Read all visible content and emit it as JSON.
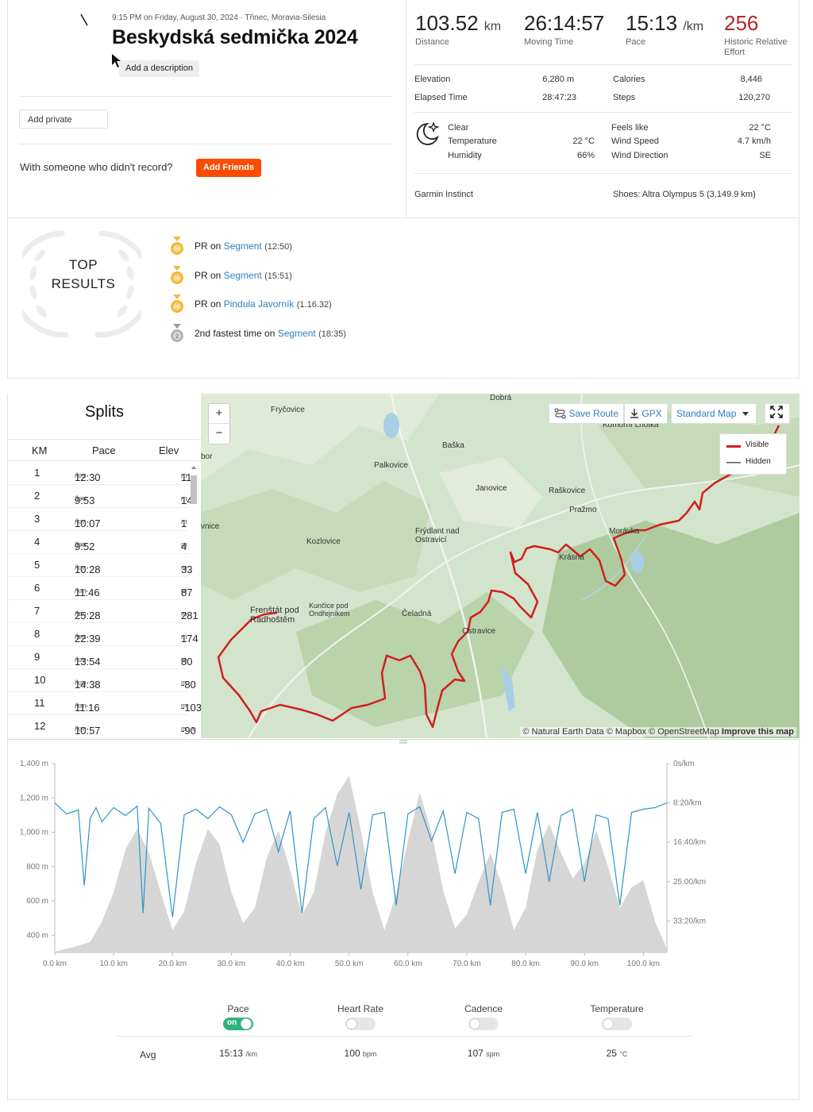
{
  "activity": {
    "meta": "9:15 PM on Friday, August 30, 2024 · Třinec, Moravia-Silesia",
    "title": "Beskydská sedmička 2024",
    "add_description": "Add a description",
    "add_private": "Add private",
    "with_someone": "With someone who didn't record?",
    "add_friends": "Add Friends"
  },
  "stats": {
    "distance": {
      "value": "103.52",
      "unit": "km",
      "label": "Distance"
    },
    "moving_time": {
      "value": "26:14:57",
      "label": "Moving Time"
    },
    "pace": {
      "value": "15:13",
      "unit": "/km",
      "label": "Pace"
    },
    "relative_effort": {
      "value": "256",
      "label": "Historic Relative Effort"
    }
  },
  "details": {
    "elevation_label": "Elevation",
    "elevation": "6,280 m",
    "calories_label": "Calories",
    "calories": "8,446",
    "elapsed_label": "Elapsed Time",
    "elapsed": "28:47:23",
    "steps_label": "Steps",
    "steps": "120,270"
  },
  "weather": {
    "condition": "Clear",
    "temperature_label": "Temperature",
    "temperature": "22 °C",
    "humidity_label": "Humidity",
    "humidity": "66%",
    "feels_like_label": "Feels like",
    "feels_like": "22 °C",
    "wind_speed_label": "Wind Speed",
    "wind_speed": "4.7 km/h",
    "wind_dir_label": "Wind Direction",
    "wind_dir": "SE",
    "icon": "moon-star-icon"
  },
  "gear": {
    "device": "Garmin Instinct",
    "shoes": "Shoes: Altra Olympus 5 (3,149.9 km)"
  },
  "top_results": {
    "title_line1": "TOP",
    "title_line2": "RESULTS",
    "items": [
      {
        "prefix": "PR on ",
        "segment": "Segment",
        "time": "(12:50)",
        "medal": "pr-gold"
      },
      {
        "prefix": "PR on ",
        "segment": "Segment",
        "time": "(15:51)",
        "medal": "pr-gold"
      },
      {
        "prefix": "PR on ",
        "segment": "Pindula Javorník",
        "time": "(1.16.32)",
        "medal": "pr-gold"
      },
      {
        "prefix": "2nd fastest time on ",
        "segment": "Segment",
        "time": "(18:35)",
        "medal": "silver-2"
      }
    ]
  },
  "splits": {
    "title": "Splits",
    "headers": [
      "KM",
      "Pace",
      "Elev"
    ],
    "pace_unit": "/km",
    "elev_unit": "m",
    "rows": [
      {
        "km": "1",
        "pace": "12:30",
        "elev": "11"
      },
      {
        "km": "2",
        "pace": "9:53",
        "elev": "14"
      },
      {
        "km": "3",
        "pace": "10:07",
        "elev": "1"
      },
      {
        "km": "4",
        "pace": "9:52",
        "elev": "4"
      },
      {
        "km": "5",
        "pace": "10:28",
        "elev": "33"
      },
      {
        "km": "6",
        "pace": "11:46",
        "elev": "87"
      },
      {
        "km": "7",
        "pace": "25:28",
        "elev": "281"
      },
      {
        "km": "8",
        "pace": "22:39",
        "elev": "174"
      },
      {
        "km": "9",
        "pace": "13:54",
        "elev": "80"
      },
      {
        "km": "10",
        "pace": "14:38",
        "elev": "-80"
      },
      {
        "km": "11",
        "pace": "11:16",
        "elev": "-103"
      },
      {
        "km": "12",
        "pace": "10:57",
        "elev": "-90"
      }
    ]
  },
  "map": {
    "save_route": "Save Route",
    "gpx": "GPX",
    "map_type": "Standard Map",
    "zoom_in": "+",
    "zoom_out": "−",
    "legend_visible": "Visible",
    "legend_hidden": "Hidden",
    "attribution_plain": "© Natural Earth Data © Mapbox © OpenStreetMap ",
    "attribution_bold": "Improve this map",
    "places": [
      "Dobrá",
      "Fryčovice",
      "Komorní Lhotka",
      "Baška",
      "Palkovice",
      "Janovice",
      "Raškovice",
      "Pražmo",
      "Kozlovice",
      "Frýdlant nad Ostravicí",
      "Morávka",
      "Krásná",
      "Frenštát pod Radhoštěm",
      "Kunčice pod Ondřejníkem",
      "Čeladná",
      "Ostravice",
      "bor",
      "vnice"
    ],
    "route_color": "#d11f1f",
    "hidden_color": "#555555"
  },
  "chart": {
    "left_ticks": [
      "1,400 m",
      "1,200 m",
      "1,000 m",
      "800 m",
      "600 m",
      "400 m"
    ],
    "right_ticks": [
      "0s/km",
      "8:20/km",
      "16:40/km",
      "25:00/km",
      "33:20/km"
    ],
    "x_ticks": [
      "0.0 km",
      "10.0 km",
      "20.0 km",
      "30.0 km",
      "40.0 km",
      "50.0 km",
      "60.0 km",
      "70.0 km",
      "80.0 km",
      "90.0 km",
      "100.0 km"
    ],
    "elevation_color": "#d6d6d6",
    "pace_color": "#2f95c7"
  },
  "chart_data": {
    "type": "area",
    "xlabel": "",
    "ylabel": "",
    "xlim": [
      0,
      104
    ],
    "ylim": [
      300,
      1400
    ],
    "y2lim": [
      0,
      2400
    ],
    "y2_inverted": true,
    "series": [
      {
        "type": "area",
        "x": [
          0,
          3,
          6,
          8,
          10,
          12,
          14,
          16,
          18,
          20,
          22,
          24,
          26,
          28,
          30,
          32,
          34,
          36,
          38,
          40,
          42,
          44,
          46,
          48,
          50,
          52,
          54,
          56,
          58,
          60,
          62,
          64,
          66,
          68,
          70,
          72,
          74,
          76,
          78,
          80,
          82,
          84,
          86,
          88,
          90,
          92,
          94,
          96,
          98,
          100,
          102,
          104
        ],
        "values": [
          305,
          330,
          360,
          480,
          650,
          900,
          1020,
          880,
          650,
          430,
          540,
          820,
          1020,
          930,
          650,
          470,
          560,
          850,
          1010,
          780,
          520,
          650,
          1000,
          1220,
          1330,
          1010,
          650,
          430,
          640,
          950,
          1230,
          1000,
          660,
          440,
          520,
          710,
          880,
          690,
          430,
          560,
          900,
          1050,
          880,
          730,
          820,
          1010,
          800,
          560,
          680,
          720,
          480,
          320
        ]
      },
      {
        "type": "line",
        "x": [
          0,
          2,
          4,
          5,
          6,
          7,
          8,
          10,
          12,
          14,
          15,
          16,
          18,
          20,
          22,
          24,
          26,
          28,
          30,
          32,
          34,
          36,
          38,
          40,
          42,
          44,
          46,
          48,
          50,
          52,
          54,
          56,
          58,
          60,
          62,
          64,
          66,
          68,
          70,
          72,
          74,
          76,
          78,
          80,
          82,
          84,
          86,
          88,
          90,
          92,
          94,
          96,
          98,
          100,
          102,
          104
        ],
        "values": [
          500,
          640,
          590,
          1550,
          700,
          560,
          740,
          560,
          660,
          540,
          1900,
          570,
          760,
          1950,
          650,
          580,
          700,
          550,
          650,
          1000,
          640,
          580,
          1120,
          600,
          1900,
          700,
          560,
          1300,
          620,
          1600,
          650,
          620,
          1800,
          640,
          550,
          980,
          600,
          1400,
          620,
          700,
          1800,
          620,
          580,
          1400,
          620,
          1500,
          660,
          580,
          1500,
          650,
          700,
          1800,
          620,
          580,
          560,
          500
        ]
      }
    ],
    "series_names": [
      "Elevation",
      "Pace"
    ],
    "grid": false
  },
  "metrics": {
    "items": [
      {
        "label": "Pace",
        "on": true,
        "avg": "15:13",
        "unit": "/km"
      },
      {
        "label": "Heart Rate",
        "on": false,
        "avg": "100",
        "unit": "bpm"
      },
      {
        "label": "Cadence",
        "on": false,
        "avg": "107",
        "unit": "spm"
      },
      {
        "label": "Temperature",
        "on": false,
        "avg": "25",
        "unit": "°C"
      }
    ],
    "avg_label": "Avg",
    "on_text": "on"
  }
}
